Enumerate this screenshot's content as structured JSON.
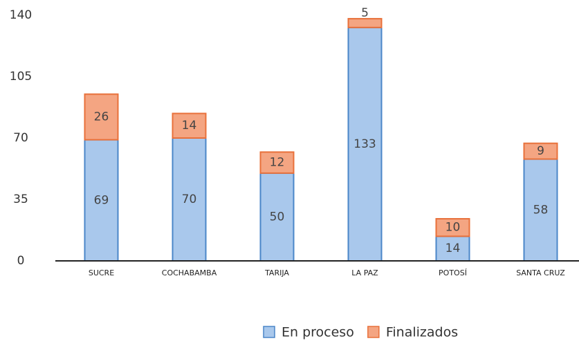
{
  "chart_data": {
    "type": "stacked_bar",
    "categories": [
      "SUCRE",
      "COCHABAMBA",
      "TARIJA",
      "LA PAZ",
      "POTOSÍ",
      "SANTA CRUZ"
    ],
    "series": [
      {
        "name": "En proceso",
        "color": "#a9c8ec",
        "values": [
          69,
          70,
          50,
          133,
          14,
          58
        ]
      },
      {
        "name": "Finalizados",
        "color": "#f4a582",
        "values": [
          26,
          14,
          12,
          5,
          10,
          9
        ]
      }
    ],
    "ylim": [
      0,
      140
    ],
    "yticks": [
      0,
      35,
      70,
      105,
      140
    ],
    "grid": false
  }
}
